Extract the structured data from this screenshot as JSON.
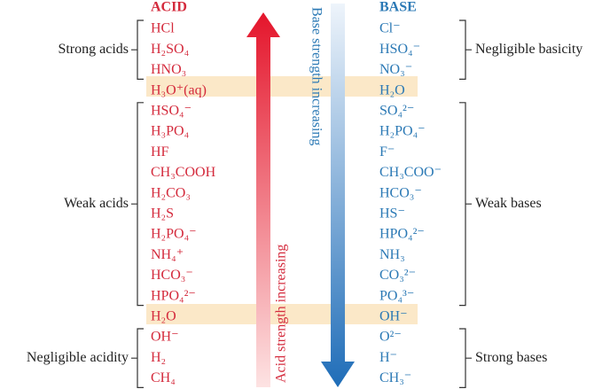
{
  "headers": {
    "acid": "ACID",
    "base": "BASE"
  },
  "rows": [
    {
      "acid": "HCl",
      "base": "Cl⁻"
    },
    {
      "acid": "H₂SO₄",
      "base": "HSO₄⁻"
    },
    {
      "acid": "HNO₃",
      "base": "NO₃⁻"
    },
    {
      "acid": "H₃O⁺(aq)",
      "base": "H₂O"
    },
    {
      "acid": "HSO₄⁻",
      "base": "SO₄²⁻"
    },
    {
      "acid": "H₃PO₄",
      "base": "H₂PO₄⁻"
    },
    {
      "acid": "HF",
      "base": "F⁻"
    },
    {
      "acid": "CH₃COOH",
      "base": "CH₃COO⁻"
    },
    {
      "acid": "H₂CO₃",
      "base": "HCO₃⁻"
    },
    {
      "acid": "H₂S",
      "base": "HS⁻"
    },
    {
      "acid": "H₂PO₄⁻",
      "base": "HPO₄²⁻"
    },
    {
      "acid": "NH₄⁺",
      "base": "NH₃"
    },
    {
      "acid": "HCO₃⁻",
      "base": "CO₃²⁻"
    },
    {
      "acid": "HPO₄²⁻",
      "base": "PO₄³⁻"
    },
    {
      "acid": "H₂O",
      "base": "OH⁻"
    },
    {
      "acid": "OH⁻",
      "base": "O²⁻"
    },
    {
      "acid": "H₂",
      "base": "H⁻"
    },
    {
      "acid": "CH₄",
      "base": "CH₃⁻"
    }
  ],
  "groups": {
    "left": [
      "Strong acids",
      "Weak acids",
      "Negligible acidity"
    ],
    "right": [
      "Negligible basicity",
      "Weak bases",
      "Strong bases"
    ]
  },
  "arrows": {
    "acid": "Acid strength increasing",
    "base": "Base strength increasing"
  }
}
